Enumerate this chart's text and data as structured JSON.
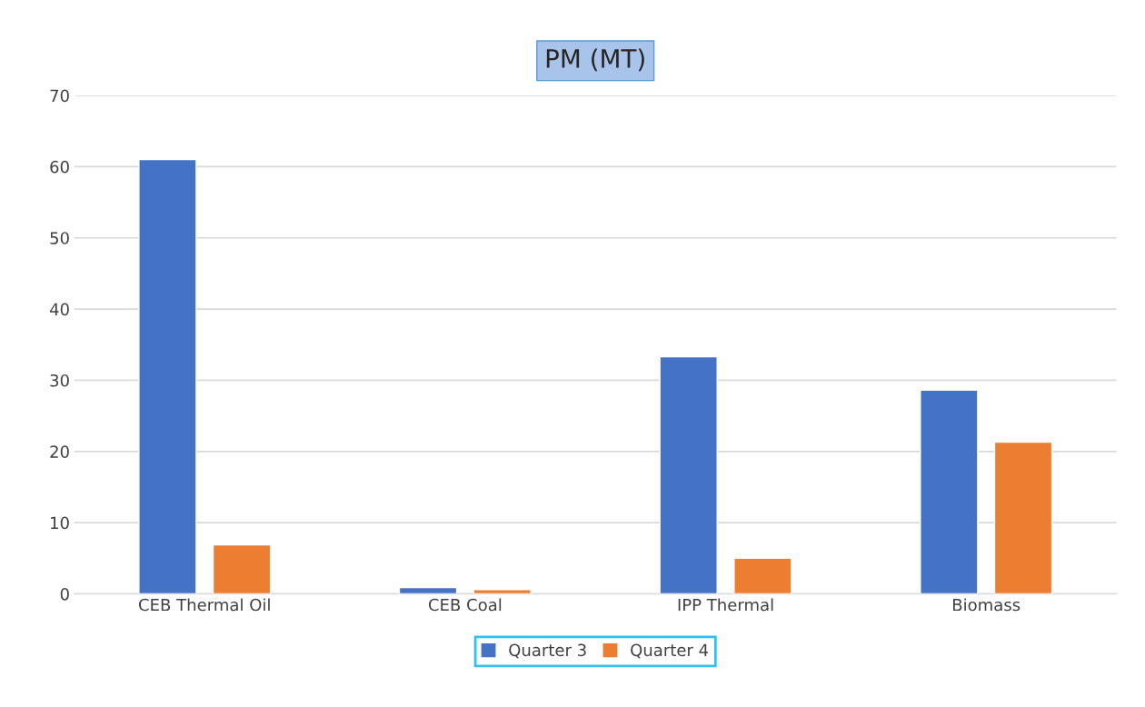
{
  "chart_data": {
    "type": "bar",
    "title": "PM (MT)",
    "categories": [
      "CEB Thermal Oil",
      "CEB Coal",
      "IPP Thermal",
      "Biomass"
    ],
    "series": [
      {
        "name": "Quarter 3",
        "color": "#4472c4",
        "values": [
          61.0,
          0.9,
          33.3,
          28.6
        ]
      },
      {
        "name": "Quarter 4",
        "color": "#ed7d31",
        "values": [
          6.9,
          0.6,
          5.0,
          21.3
        ]
      }
    ],
    "ylim": [
      0,
      70
    ],
    "yticks": [
      0,
      10,
      20,
      30,
      40,
      50,
      60,
      70
    ],
    "grid": "y",
    "legend": "bottom"
  }
}
